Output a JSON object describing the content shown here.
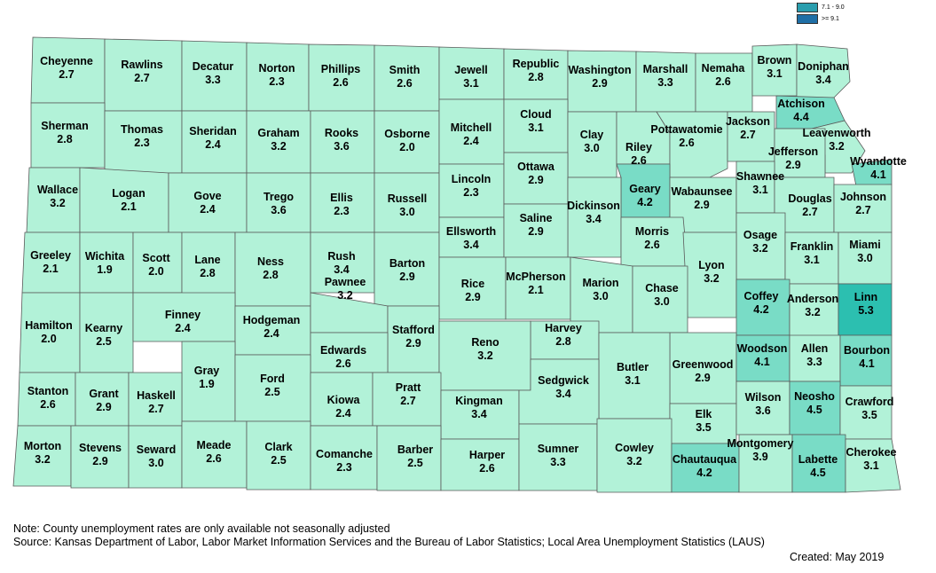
{
  "colors": {
    "low": "#b2f2d8",
    "mid": "#79dcc6",
    "high": "#2cbfb0",
    "legend_mid": "#2a9eae",
    "legend_high": "#1f6fa6"
  },
  "legend": [
    {
      "label": "7.1 - 9.0",
      "color": "#2a9eae"
    },
    {
      "label": ">= 9.1",
      "color": "#1f6fa6"
    }
  ],
  "counties": [
    {
      "name": "Cheyenne",
      "rate": "2.7"
    },
    {
      "name": "Rawlins",
      "rate": "2.7"
    },
    {
      "name": "Decatur",
      "rate": "3.3"
    },
    {
      "name": "Norton",
      "rate": "2.3"
    },
    {
      "name": "Phillips",
      "rate": "2.6"
    },
    {
      "name": "Smith",
      "rate": "2.6"
    },
    {
      "name": "Jewell",
      "rate": "3.1"
    },
    {
      "name": "Republic",
      "rate": "2.8"
    },
    {
      "name": "Washington",
      "rate": "2.9"
    },
    {
      "name": "Marshall",
      "rate": "3.3"
    },
    {
      "name": "Nemaha",
      "rate": "2.6"
    },
    {
      "name": "Brown",
      "rate": "3.1"
    },
    {
      "name": "Doniphan",
      "rate": "3.4"
    },
    {
      "name": "Sherman",
      "rate": "2.8"
    },
    {
      "name": "Thomas",
      "rate": "2.3"
    },
    {
      "name": "Sheridan",
      "rate": "2.4"
    },
    {
      "name": "Graham",
      "rate": "3.2"
    },
    {
      "name": "Rooks",
      "rate": "3.6"
    },
    {
      "name": "Osborne",
      "rate": "2.0"
    },
    {
      "name": "Mitchell",
      "rate": "2.4"
    },
    {
      "name": "Cloud",
      "rate": "3.1"
    },
    {
      "name": "Clay",
      "rate": "3.0"
    },
    {
      "name": "Riley",
      "rate": "2.6"
    },
    {
      "name": "Pottawatomie",
      "rate": "2.6"
    },
    {
      "name": "Jackson",
      "rate": "2.7"
    },
    {
      "name": "Atchison",
      "rate": "4.4"
    },
    {
      "name": "Leavenworth",
      "rate": "3.2"
    },
    {
      "name": "Jefferson",
      "rate": "2.9"
    },
    {
      "name": "Wyandotte",
      "rate": "4.1"
    },
    {
      "name": "Wallace",
      "rate": "3.2"
    },
    {
      "name": "Logan",
      "rate": "2.1"
    },
    {
      "name": "Gove",
      "rate": "2.4"
    },
    {
      "name": "Trego",
      "rate": "3.6"
    },
    {
      "name": "Ellis",
      "rate": "2.3"
    },
    {
      "name": "Russell",
      "rate": "3.0"
    },
    {
      "name": "Lincoln",
      "rate": "2.3"
    },
    {
      "name": "Ottawa",
      "rate": "2.9"
    },
    {
      "name": "Geary",
      "rate": "4.2"
    },
    {
      "name": "Dickinson",
      "rate": "3.4"
    },
    {
      "name": "Wabaunsee",
      "rate": "2.9"
    },
    {
      "name": "Shawnee",
      "rate": "3.1"
    },
    {
      "name": "Douglas",
      "rate": "2.7"
    },
    {
      "name": "Johnson",
      "rate": "2.7"
    },
    {
      "name": "Greeley",
      "rate": "2.1"
    },
    {
      "name": "Wichita",
      "rate": "1.9"
    },
    {
      "name": "Scott",
      "rate": "2.0"
    },
    {
      "name": "Lane",
      "rate": "2.8"
    },
    {
      "name": "Ness",
      "rate": "2.8"
    },
    {
      "name": "Rush",
      "rate": "3.4"
    },
    {
      "name": "Barton",
      "rate": "2.9"
    },
    {
      "name": "Ellsworth",
      "rate": "3.4"
    },
    {
      "name": "Saline",
      "rate": "2.9"
    },
    {
      "name": "Morris",
      "rate": "2.6"
    },
    {
      "name": "Osage",
      "rate": "3.2"
    },
    {
      "name": "Franklin",
      "rate": "3.1"
    },
    {
      "name": "Miami",
      "rate": "3.0"
    },
    {
      "name": "Lyon",
      "rate": "3.2"
    },
    {
      "name": "Hamilton",
      "rate": "2.0"
    },
    {
      "name": "Kearny",
      "rate": "2.5"
    },
    {
      "name": "Finney",
      "rate": "2.4"
    },
    {
      "name": "Hodgeman",
      "rate": "2.4"
    },
    {
      "name": "Pawnee",
      "rate": "3.2"
    },
    {
      "name": "Rice",
      "rate": "2.9"
    },
    {
      "name": "McPherson",
      "rate": "2.1"
    },
    {
      "name": "Marion",
      "rate": "3.0"
    },
    {
      "name": "Chase",
      "rate": "3.0"
    },
    {
      "name": "Coffey",
      "rate": "4.2"
    },
    {
      "name": "Anderson",
      "rate": "3.2"
    },
    {
      "name": "Linn",
      "rate": "5.3"
    },
    {
      "name": "Stafford",
      "rate": "2.9"
    },
    {
      "name": "Harvey",
      "rate": "2.8"
    },
    {
      "name": "Reno",
      "rate": "3.2"
    },
    {
      "name": "Edwards",
      "rate": "2.6"
    },
    {
      "name": "Gray",
      "rate": "1.9"
    },
    {
      "name": "Ford",
      "rate": "2.5"
    },
    {
      "name": "Greenwood",
      "rate": "2.9"
    },
    {
      "name": "Woodson",
      "rate": "4.1"
    },
    {
      "name": "Allen",
      "rate": "3.3"
    },
    {
      "name": "Bourbon",
      "rate": "4.1"
    },
    {
      "name": "Butler",
      "rate": "3.1"
    },
    {
      "name": "Stanton",
      "rate": "2.6"
    },
    {
      "name": "Grant",
      "rate": "2.9"
    },
    {
      "name": "Haskell",
      "rate": "2.7"
    },
    {
      "name": "Kiowa",
      "rate": "2.4"
    },
    {
      "name": "Pratt",
      "rate": "2.7"
    },
    {
      "name": "Kingman",
      "rate": "3.4"
    },
    {
      "name": "Sedgwick",
      "rate": "3.4"
    },
    {
      "name": "Elk",
      "rate": "3.5"
    },
    {
      "name": "Wilson",
      "rate": "3.6"
    },
    {
      "name": "Neosho",
      "rate": "4.5"
    },
    {
      "name": "Crawford",
      "rate": "3.5"
    },
    {
      "name": "Morton",
      "rate": "3.2"
    },
    {
      "name": "Stevens",
      "rate": "2.9"
    },
    {
      "name": "Seward",
      "rate": "3.0"
    },
    {
      "name": "Meade",
      "rate": "2.6"
    },
    {
      "name": "Clark",
      "rate": "2.5"
    },
    {
      "name": "Comanche",
      "rate": "2.3"
    },
    {
      "name": "Barber",
      "rate": "2.5"
    },
    {
      "name": "Harper",
      "rate": "2.6"
    },
    {
      "name": "Sumner",
      "rate": "3.3"
    },
    {
      "name": "Cowley",
      "rate": "3.2"
    },
    {
      "name": "Chautauqua",
      "rate": "4.2"
    },
    {
      "name": "Montgomery",
      "rate": "3.9"
    },
    {
      "name": "Labette",
      "rate": "4.5"
    },
    {
      "name": "Cherokee",
      "rate": "3.1"
    }
  ],
  "notes": {
    "note": "Note: County unemployment rates are only available not seasonally adjusted",
    "source": "Source: Kansas Department of Labor, Labor Market Information Services and the Bureau of Labor Statistics; Local Area Unemployment Statistics (LAUS)",
    "created": "Created:  May 2019"
  }
}
